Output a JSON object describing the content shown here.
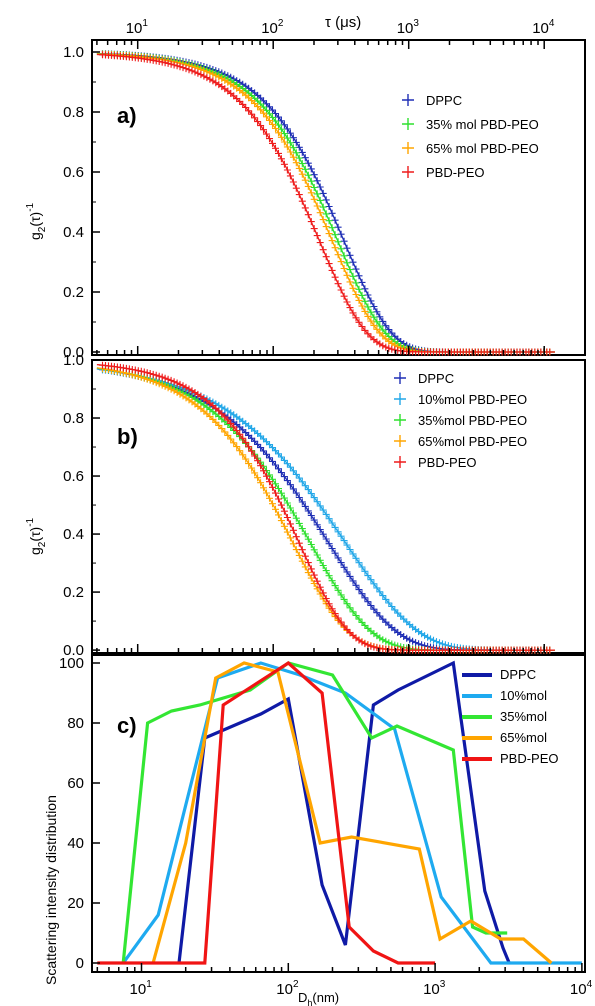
{
  "colors": {
    "DPPC": "#1f2fb5",
    "10": "#22a7e8",
    "35": "#2ee02e",
    "65": "#ffa500",
    "PBD": "#ee1c1c",
    "c_DPPC": "#0f1aa6",
    "c_10": "#1eaaf0",
    "c_35": "#33e633",
    "c_65": "#ffa500",
    "c_PBD": "#f01414"
  },
  "top_axis": {
    "title_tau": "τ (μs)",
    "ticks": [
      {
        "base": "10",
        "exp": "1",
        "value": 10
      },
      {
        "base": "10",
        "exp": "2",
        "value": 100
      },
      {
        "base": "10",
        "exp": "3",
        "value": 1000
      },
      {
        "base": "10",
        "exp": "4",
        "value": 10000
      }
    ]
  },
  "chart_data": [
    {
      "type": "scatter",
      "panel_label": "a)",
      "ylabel_main": "g",
      "ylabel_sub": "2",
      "ylabel_paren": "(τ)",
      "ylabel_sup": "-1",
      "x_scale": "log",
      "xlim": [
        4.6,
        20000
      ],
      "ylim": [
        -0.01,
        1.04
      ],
      "yticks": [
        "0.0",
        "0.2",
        "0.4",
        "0.6",
        "0.8",
        "1.0"
      ],
      "legend": "top-right",
      "series": [
        {
          "name": "DPPC",
          "color_key": "DPPC",
          "tau_half": 250,
          "beta": 1.26
        },
        {
          "name": "35% mol PBD-PEO",
          "color_key": "35",
          "tau_half": 225,
          "beta": 1.26
        },
        {
          "name": " 65% mol PBD-PEO",
          "color_key": "65",
          "tau_half": 205,
          "beta": 1.26
        },
        {
          "name": "PBD-PEO",
          "color_key": "PBD",
          "tau_half": 165,
          "beta": 1.26
        }
      ]
    },
    {
      "type": "scatter",
      "panel_label": "b)",
      "ylabel_main": "g",
      "ylabel_sub": "2",
      "ylabel_paren": "(τ)",
      "ylabel_sup": "-1",
      "x_scale": "log",
      "xlim": [
        4.6,
        20000
      ],
      "ylim": [
        -0.01,
        1.0
      ],
      "yticks": [
        "0.0",
        "0.2",
        "0.4",
        "0.6",
        "0.8",
        "1.0"
      ],
      "legend": "top-right",
      "series": [
        {
          "name": "DPPC",
          "color_key": "DPPC",
          "tau_half": 170,
          "beta": 0.88
        },
        {
          "name": "10%mol PBD-PEO",
          "color_key": "10",
          "tau_half": 220,
          "beta": 0.82
        },
        {
          "name": "35%mol PBD-PEO",
          "color_key": "35",
          "tau_half": 130,
          "beta": 0.98
        },
        {
          "name": "65%mol PBD-PEO",
          "color_key": "65",
          "tau_half": 100,
          "beta": 1.08
        },
        {
          "name": "PBD-PEO",
          "color_key": "PBD",
          "tau_half": 115,
          "beta": 1.2
        }
      ]
    },
    {
      "type": "line",
      "panel_label": "c)",
      "ylabel": "Scattering intensity distribution",
      "xlabel_main": "D",
      "xlabel_sub": "h",
      "xlabel_unit": "(nm)",
      "x_scale": "log",
      "xlim": [
        4.6,
        10500
      ],
      "ylim": [
        -2,
        102
      ],
      "yticks": [
        "0",
        "20",
        "40",
        "60",
        "80",
        "100"
      ],
      "xticks": [
        {
          "base": "10",
          "exp": "1",
          "value": 10
        },
        {
          "base": "10",
          "exp": "2",
          "value": 100
        },
        {
          "base": "10",
          "exp": "3",
          "value": 1000
        },
        {
          "base": "10",
          "exp": "4",
          "value": 10000
        }
      ],
      "legend": "top-right",
      "series": [
        {
          "name": "DPPC",
          "color_key": "c_DPPC",
          "x": [
            18,
            27,
            65,
            100,
            170,
            245,
            380,
            560,
            1330,
            2180,
            2900,
            3200
          ],
          "y": [
            0,
            75,
            83,
            88,
            26,
            6,
            86,
            91,
            100,
            24,
            5,
            0
          ]
        },
        {
          "name": "10%mol",
          "color_key": "c_10",
          "x": [
            7.5,
            13,
            33,
            65,
            120,
            245,
            530,
            1100,
            2400,
            10000
          ],
          "y": [
            0,
            16,
            95,
            100,
            96,
            90,
            78,
            22,
            0,
            0
          ]
        },
        {
          "name": "35%mol",
          "color_key": "c_35",
          "x": [
            7.5,
            11,
            16,
            25,
            55,
            100,
            200,
            370,
            550,
            1330,
            1800,
            2220,
            3100
          ],
          "y": [
            0,
            80,
            84,
            86,
            91,
            100,
            96,
            75,
            79,
            71,
            12,
            10,
            10
          ]
        },
        {
          "name": "65%mol",
          "color_key": "c_65",
          "x": [
            12,
            20,
            32,
            50,
            85,
            165,
            270,
            780,
            1080,
            1750,
            2800,
            4000,
            6200
          ],
          "y": [
            0,
            40,
            95,
            100,
            97,
            40,
            42,
            38,
            8,
            14,
            8,
            8,
            0
          ]
        },
        {
          "name": "PBD-PEO",
          "color_key": "c_PBD",
          "x": [
            5,
            27,
            36,
            100,
            170,
            260,
            380,
            560,
            1000
          ],
          "y": [
            0,
            0,
            86,
            100,
            90,
            12,
            4,
            0,
            0
          ]
        }
      ]
    }
  ]
}
